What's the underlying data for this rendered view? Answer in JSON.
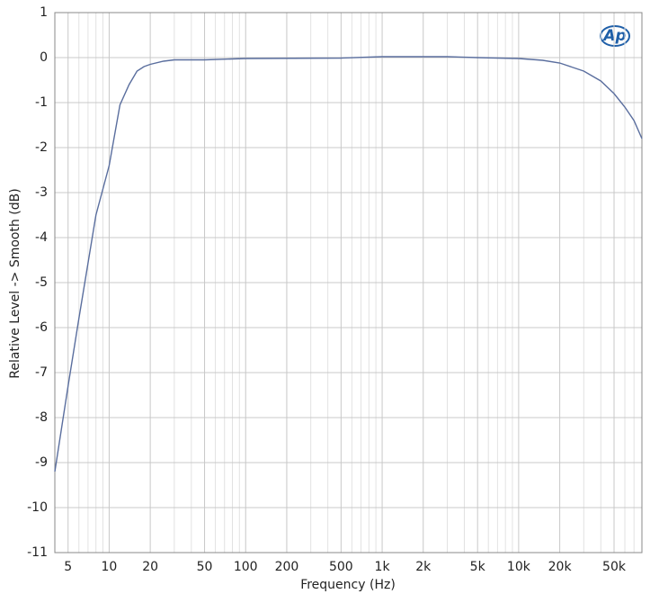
{
  "chart_data": {
    "type": "line",
    "logo": "Ap",
    "xlabel": "Frequency (Hz)",
    "ylabel": "Relative Level -> Smooth (dB)",
    "xscale": "log",
    "grid": true,
    "x": [
      4,
      5,
      6,
      8,
      10,
      12,
      14,
      16,
      18,
      20,
      25,
      30,
      50,
      100,
      500,
      1000,
      3000,
      5000,
      10000,
      15000,
      20000,
      30000,
      40000,
      50000,
      60000,
      70000,
      80000
    ],
    "series": [
      {
        "name": "Relative Level",
        "color": "#5a6e9e",
        "values": [
          -9.2,
          -7.3,
          -5.8,
          -3.5,
          -2.4,
          -1.05,
          -0.6,
          -0.3,
          -0.2,
          -0.15,
          -0.08,
          -0.05,
          -0.05,
          -0.02,
          -0.01,
          0.02,
          0.02,
          0,
          -0.02,
          -0.06,
          -0.12,
          -0.3,
          -0.52,
          -0.8,
          -1.1,
          -1.4,
          -1.8
        ]
      }
    ],
    "xlim": [
      4,
      80000
    ],
    "ylim": [
      -11,
      1
    ],
    "xticks": [
      5,
      10,
      20,
      50,
      100,
      200,
      500,
      {
        "value": 1000,
        "label": "1k"
      },
      {
        "value": 2000,
        "label": "2k"
      },
      {
        "value": 5000,
        "label": "5k"
      },
      {
        "value": 10000,
        "label": "10k"
      },
      {
        "value": 20000,
        "label": "20k"
      },
      {
        "value": 50000,
        "label": "50k"
      }
    ],
    "xminorgrid": [
      4,
      6,
      7,
      8,
      9,
      30,
      40,
      60,
      70,
      80,
      90,
      300,
      400,
      600,
      700,
      800,
      900,
      3000,
      4000,
      6000,
      7000,
      8000,
      9000,
      30000,
      40000,
      60000,
      70000,
      80000
    ],
    "yticks": [
      1,
      0,
      -1,
      -2,
      -3,
      -4,
      -5,
      -6,
      -7,
      -8,
      -9,
      -10,
      -11
    ]
  }
}
